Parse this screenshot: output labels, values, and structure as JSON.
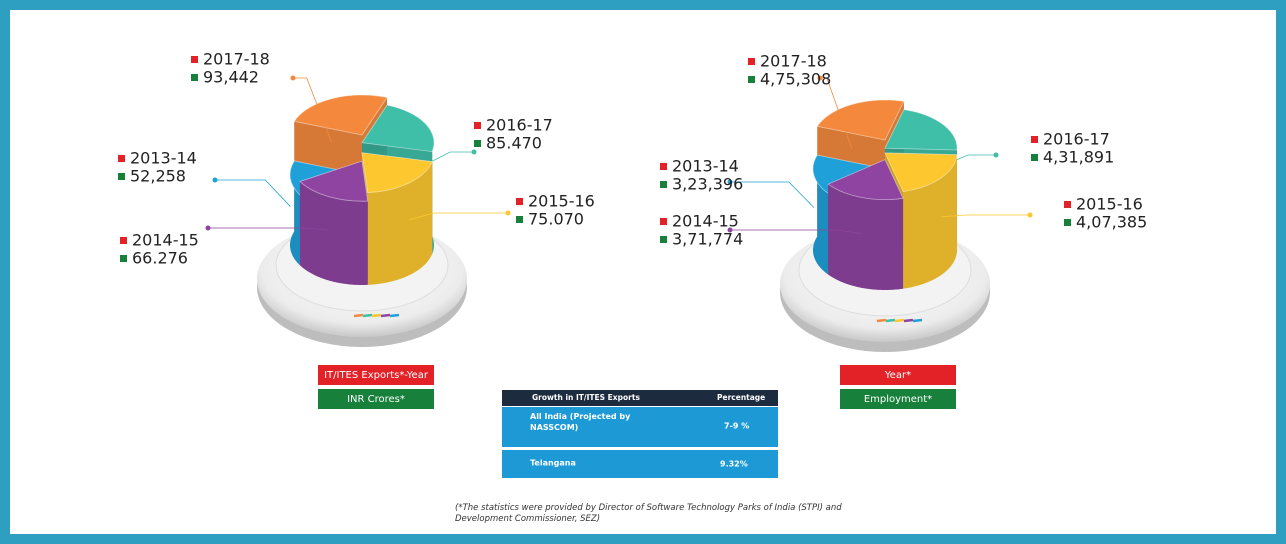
{
  "chart_data": [
    {
      "type": "pie",
      "legend_label": "IT/ITES Exports*-Year",
      "unit_label": "INR Crores*",
      "categories": [
        "2017-18",
        "2016-17",
        "2015-16",
        "2014-15",
        "2013-14"
      ],
      "values": [
        93442,
        85470,
        75070,
        66276,
        52258
      ],
      "value_labels": [
        "93,442",
        "85.470",
        "75.070",
        "66.276",
        "52,258"
      ],
      "colors": [
        "#f4893d",
        "#3fbfa8",
        "#fdc82f",
        "#8e44a0",
        "#1fa0d8"
      ]
    },
    {
      "type": "pie",
      "legend_label": "Year*",
      "unit_label": "Employment*",
      "categories": [
        "2017-18",
        "2016-17",
        "2015-16",
        "2014-15",
        "2013-14"
      ],
      "values": [
        475308,
        431891,
        407385,
        371774,
        323396
      ],
      "value_labels": [
        "4,75,308",
        "4,31,891",
        "4,07,385",
        "3,71,774",
        "3,23,396"
      ],
      "colors": [
        "#f4893d",
        "#3fbfa8",
        "#fdc82f",
        "#8e44a0",
        "#1fa0d8"
      ]
    }
  ],
  "table": {
    "header": [
      "Growth in IT/ITES Exports",
      "Percentage"
    ],
    "rows": [
      [
        "All India (Projected by NASSCOM)",
        "7-9 %"
      ],
      [
        "Telangana",
        "9.32%"
      ]
    ]
  },
  "footnote": "(*The statistics were provided by Director of Software Technology Parks of India (STPI) and Development Commissioner, SEZ)"
}
